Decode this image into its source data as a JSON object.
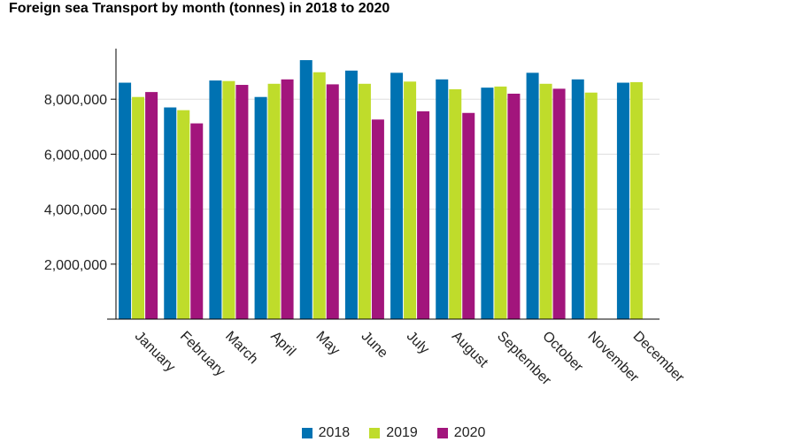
{
  "chart_data": {
    "type": "bar",
    "title": "Foreign sea Transport by month (tonnes) in 2018 to 2020",
    "xlabel": "",
    "ylabel": "",
    "categories": [
      "January",
      "February",
      "March",
      "April",
      "May",
      "June",
      "July",
      "August",
      "September",
      "October",
      "November",
      "December"
    ],
    "series": [
      {
        "name": "2018",
        "color": "#0072b2",
        "values": [
          8600000,
          7700000,
          8680000,
          8080000,
          9420000,
          9040000,
          8960000,
          8720000,
          8420000,
          8960000,
          8720000,
          8600000
        ]
      },
      {
        "name": "2019",
        "color": "#bfdc2b",
        "values": [
          8080000,
          7600000,
          8660000,
          8560000,
          8980000,
          8560000,
          8640000,
          8360000,
          8460000,
          8560000,
          8240000,
          8620000
        ]
      },
      {
        "name": "2020",
        "color": "#a2157c",
        "values": [
          8260000,
          7120000,
          8520000,
          8720000,
          8540000,
          7260000,
          7560000,
          7500000,
          8200000,
          8380000,
          null,
          null
        ]
      }
    ],
    "ylim": [
      0,
      10000000
    ],
    "yticks": [
      2000000,
      4000000,
      6000000,
      8000000
    ],
    "ytick_labels": [
      "2,000,000",
      "4,000,000",
      "6,000,000",
      "8,000,000"
    ],
    "grid": true,
    "legend_position": "bottom"
  }
}
